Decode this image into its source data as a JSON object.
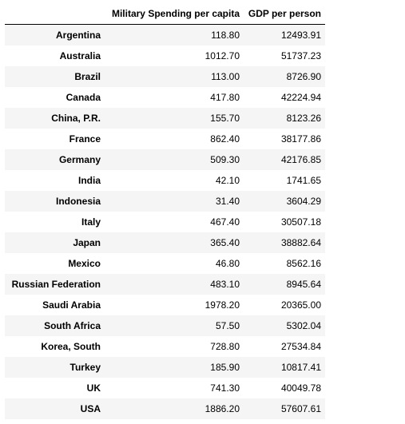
{
  "table": {
    "index_header": "",
    "columns": [
      "Military Spending per capita",
      "GDP per person"
    ],
    "rows": [
      {
        "country": "Argentina",
        "military": "118.80",
        "gdp": "12493.91"
      },
      {
        "country": "Australia",
        "military": "1012.70",
        "gdp": "51737.23"
      },
      {
        "country": "Brazil",
        "military": "113.00",
        "gdp": "8726.90"
      },
      {
        "country": "Canada",
        "military": "417.80",
        "gdp": "42224.94"
      },
      {
        "country": "China, P.R.",
        "military": "155.70",
        "gdp": "8123.26"
      },
      {
        "country": "France",
        "military": "862.40",
        "gdp": "38177.86"
      },
      {
        "country": "Germany",
        "military": "509.30",
        "gdp": "42176.85"
      },
      {
        "country": "India",
        "military": "42.10",
        "gdp": "1741.65"
      },
      {
        "country": "Indonesia",
        "military": "31.40",
        "gdp": "3604.29"
      },
      {
        "country": "Italy",
        "military": "467.40",
        "gdp": "30507.18"
      },
      {
        "country": "Japan",
        "military": "365.40",
        "gdp": "38882.64"
      },
      {
        "country": "Mexico",
        "military": "46.80",
        "gdp": "8562.16"
      },
      {
        "country": "Russian Federation",
        "military": "483.10",
        "gdp": "8945.64"
      },
      {
        "country": "Saudi Arabia",
        "military": "1978.20",
        "gdp": "20365.00"
      },
      {
        "country": "South Africa",
        "military": "57.50",
        "gdp": "5302.04"
      },
      {
        "country": "Korea, South",
        "military": "728.80",
        "gdp": "27534.84"
      },
      {
        "country": "Turkey",
        "military": "185.90",
        "gdp": "10817.41"
      },
      {
        "country": "UK",
        "military": "741.30",
        "gdp": "40049.78"
      },
      {
        "country": "USA",
        "military": "1886.20",
        "gdp": "57607.61"
      }
    ]
  }
}
